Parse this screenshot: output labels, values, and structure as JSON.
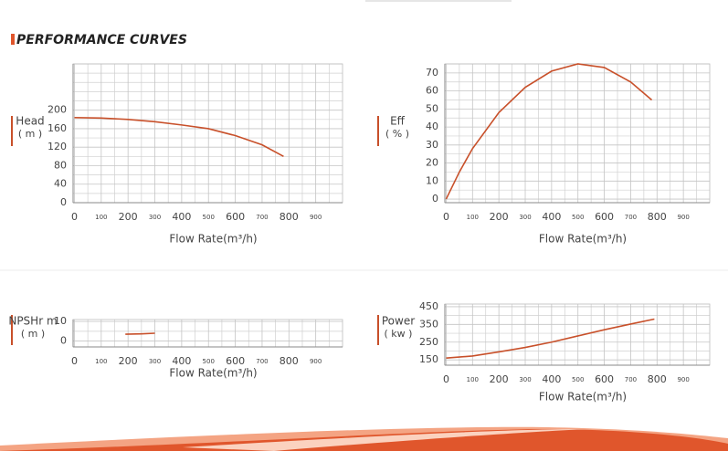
{
  "page_title": "PERFORMANCE CURVES",
  "chart_data": [
    {
      "type": "line",
      "ylabel": [
        "Head",
        "( m )"
      ],
      "xlabel": "Flow Rate(m³/h)",
      "color": "#c8502a",
      "grid": true,
      "x": [
        0,
        100,
        200,
        300,
        400,
        500,
        600,
        700,
        780
      ],
      "values": [
        184,
        183,
        180,
        175,
        168,
        160,
        145,
        125,
        100
      ],
      "xlim": [
        -5,
        1000
      ],
      "xticks": [
        0,
        100,
        200,
        300,
        400,
        500,
        600,
        700,
        800,
        900
      ],
      "ylim": [
        0,
        300
      ],
      "yticks": [
        0,
        40,
        80,
        120,
        160,
        200
      ]
    },
    {
      "type": "line",
      "ylabel": [
        "Eff",
        "( % )"
      ],
      "xlabel": "Flow Rate(m³/h)",
      "color": "#c8502a",
      "grid": true,
      "x": [
        0,
        50,
        100,
        200,
        300,
        400,
        500,
        600,
        700,
        780
      ],
      "values": [
        0,
        15,
        28,
        48,
        62,
        71,
        75,
        73,
        65,
        55
      ],
      "xlim": [
        -5,
        1000
      ],
      "xticks": [
        0,
        100,
        200,
        300,
        400,
        500,
        600,
        700,
        800,
        900
      ],
      "ylim": [
        -2,
        75
      ],
      "yticks": [
        0,
        10,
        20,
        30,
        40,
        50,
        60,
        70
      ]
    },
    {
      "type": "line",
      "ylabel": [
        "NPSHr m",
        "( m )"
      ],
      "xlabel": "Flow Rate(m³/h)",
      "color": "#c8502a",
      "grid": true,
      "x": [
        190,
        250,
        300
      ],
      "values": [
        3.5,
        3.7,
        4
      ],
      "xlim": [
        -5,
        1000
      ],
      "xticks": [
        0,
        100,
        200,
        300,
        400,
        500,
        600,
        700,
        800,
        900
      ],
      "ylim": [
        -3,
        11
      ],
      "yticks": [
        0,
        10
      ]
    },
    {
      "type": "line",
      "ylabel": [
        "Power",
        "( kw )"
      ],
      "xlabel": "Flow Rate(m³/h)",
      "color": "#c8502a",
      "grid": true,
      "x": [
        0,
        100,
        200,
        300,
        400,
        500,
        600,
        700,
        790
      ],
      "values": [
        160,
        172,
        195,
        220,
        250,
        285,
        320,
        352,
        380
      ],
      "xlim": [
        -5,
        1000
      ],
      "xticks": [
        0,
        100,
        200,
        300,
        400,
        500,
        600,
        700,
        800,
        900
      ],
      "ylim": [
        120,
        465
      ],
      "yticks": [
        150,
        250,
        350,
        450
      ]
    }
  ]
}
